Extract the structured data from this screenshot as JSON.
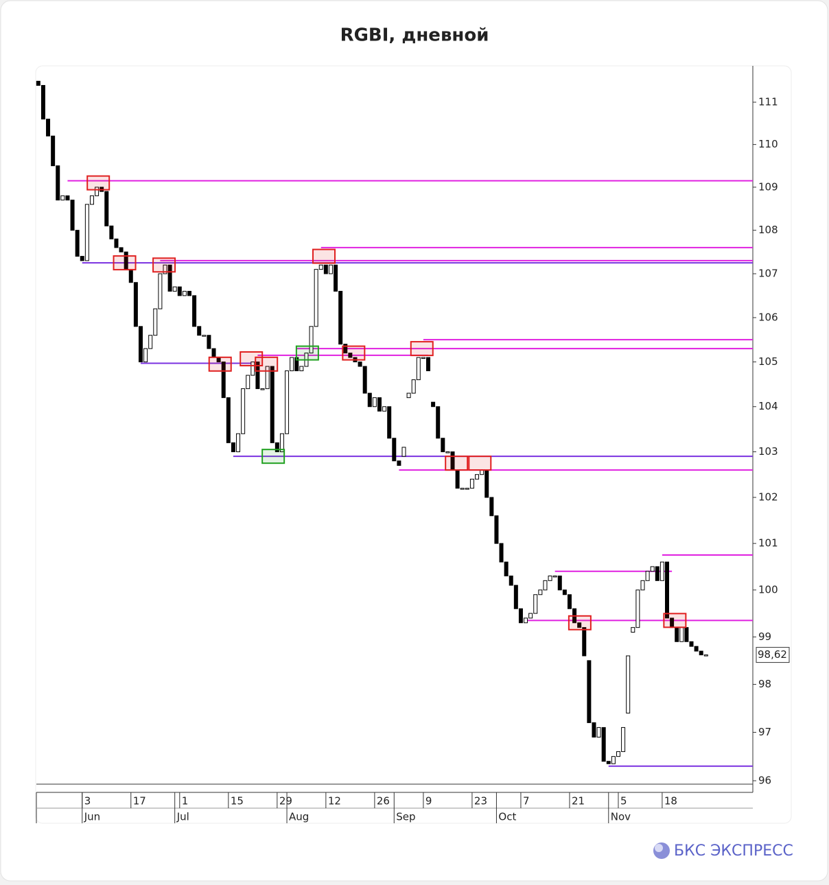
{
  "chart_data": {
    "type": "candlestick",
    "title": "RGBI, дневной",
    "brand": "БКС ЭКСПРЕСС",
    "log_scale": true,
    "ylim": [
      95.93,
      111.85
    ],
    "yticks": [
      96,
      97,
      98,
      99,
      100,
      101,
      102,
      103,
      104,
      105,
      106,
      107,
      108,
      109,
      110,
      111
    ],
    "xlim": [
      -0.4,
      146.6
    ],
    "xticks": [
      {
        "value": 9,
        "label": "3"
      },
      {
        "value": 19,
        "label": "17"
      },
      {
        "value": 29,
        "label": "1"
      },
      {
        "value": 39,
        "label": "15"
      },
      {
        "value": 49,
        "label": "29"
      },
      {
        "value": 59,
        "label": "12"
      },
      {
        "value": 69,
        "label": "26"
      },
      {
        "value": 79,
        "label": "9"
      },
      {
        "value": 89,
        "label": "23"
      },
      {
        "value": 99,
        "label": "7"
      },
      {
        "value": 109,
        "label": "21"
      },
      {
        "value": 119,
        "label": "5"
      },
      {
        "value": 128,
        "label": "18"
      }
    ],
    "month_ticks": [
      {
        "value": 9,
        "label": "Jun"
      },
      {
        "value": 28,
        "label": "Jul"
      },
      {
        "value": 51,
        "label": "Aug"
      },
      {
        "value": 73,
        "label": "Sep"
      },
      {
        "value": 94,
        "label": "Oct"
      },
      {
        "value": 117,
        "label": "Nov"
      }
    ],
    "open": [
      111.5,
      111.4,
      110.6,
      110.2,
      109.5,
      108.7,
      108.8,
      108.7,
      108.0,
      107.4,
      107.3,
      108.6,
      108.8,
      109.0,
      108.9,
      108.1,
      107.8,
      107.6,
      107.5,
      107.1,
      106.8,
      105.8,
      105.0,
      105.3,
      105.6,
      106.2,
      107.0,
      107.2,
      106.6,
      106.7,
      106.5,
      106.6,
      106.5,
      105.8,
      105.6,
      105.6,
      105.3,
      105.1,
      105.0,
      104.2,
      103.2,
      103.0,
      103.4,
      104.4,
      104.7,
      105.0,
      104.4,
      104.4,
      104.9,
      103.2,
      103.0,
      103.4,
      104.8,
      105.1,
      104.8,
      104.9,
      105.2,
      105.8,
      107.1,
      107.2,
      107.0,
      107.2,
      106.6,
      105.4,
      105.2,
      105.1,
      105.0,
      104.9,
      104.3,
      104.0,
      104.2,
      103.9,
      104.0,
      103.3,
      102.8,
      102.9,
      104.2,
      104.3,
      104.6,
      105.1,
      105.1,
      104.1,
      104.0,
      103.3,
      103.0,
      103.0,
      102.6,
      102.2,
      102.2,
      102.2,
      102.4,
      102.5,
      102.6,
      102.0,
      101.6,
      101.0,
      100.6,
      100.3,
      100.1,
      99.6,
      99.3,
      99.4,
      99.5,
      99.9,
      100.0,
      100.2,
      100.3,
      100.3,
      100.0,
      99.9,
      99.6,
      99.3,
      99.2,
      98.5,
      97.2,
      96.9,
      97.1,
      96.4,
      96.35,
      96.5,
      96.6,
      97.4,
      99.1,
      99.2,
      100.0,
      100.2,
      100.4,
      100.5,
      100.2,
      100.6,
      99.4,
      99.2,
      98.9,
      99.2,
      98.9,
      98.8,
      98.7,
      98.6
    ],
    "close": [
      111.4,
      110.6,
      110.2,
      109.5,
      108.7,
      108.8,
      108.7,
      108.0,
      107.4,
      107.3,
      108.6,
      108.8,
      109.0,
      108.9,
      108.1,
      107.8,
      107.6,
      107.5,
      107.1,
      106.8,
      105.8,
      105.0,
      105.3,
      105.6,
      106.2,
      107.0,
      107.2,
      106.6,
      106.7,
      106.5,
      106.6,
      106.5,
      105.8,
      105.6,
      105.6,
      105.3,
      105.1,
      105.0,
      104.2,
      103.2,
      103.0,
      103.4,
      104.4,
      104.7,
      105.0,
      104.4,
      104.4,
      104.9,
      103.2,
      103.0,
      103.4,
      104.8,
      105.1,
      104.8,
      104.9,
      105.2,
      105.8,
      107.1,
      107.2,
      107.0,
      107.2,
      106.6,
      105.4,
      105.2,
      105.1,
      105.0,
      104.9,
      104.3,
      104.0,
      104.2,
      103.9,
      104.0,
      103.3,
      102.8,
      102.7,
      103.1,
      104.3,
      104.6,
      105.1,
      105.1,
      104.8,
      104.0,
      103.3,
      103.0,
      103.0,
      102.6,
      102.2,
      102.2,
      102.2,
      102.4,
      102.5,
      102.6,
      102.0,
      101.6,
      101.0,
      100.6,
      100.3,
      100.1,
      99.6,
      99.3,
      99.4,
      99.5,
      99.9,
      100.0,
      100.2,
      100.3,
      100.3,
      100.0,
      99.9,
      99.6,
      99.3,
      99.2,
      98.6,
      97.2,
      96.9,
      97.1,
      96.4,
      96.35,
      96.5,
      96.6,
      97.1,
      98.6,
      99.2,
      100.0,
      100.2,
      100.4,
      100.5,
      100.2,
      100.6,
      99.4,
      99.2,
      98.9,
      99.2,
      98.9,
      98.8,
      98.7,
      98.62,
      98.62
    ],
    "levels": [
      {
        "value": 109.15,
        "start": 6,
        "color": "#e020e0"
      },
      {
        "value": 107.6,
        "start": 58,
        "color": "#e020e0"
      },
      {
        "value": 107.3,
        "start": 25,
        "color": "#e020e0"
      },
      {
        "value": 107.25,
        "start": 9,
        "color": "#7a30e0"
      },
      {
        "value": 105.5,
        "start": 79,
        "color": "#e020e0"
      },
      {
        "value": 105.3,
        "start": 53,
        "color": "#e020e0"
      },
      {
        "value": 105.15,
        "start": 45,
        "end": 80,
        "color": "#e020e0"
      },
      {
        "value": 104.97,
        "start": 21,
        "end": 44,
        "color": "#7a30e0"
      },
      {
        "value": 102.9,
        "start": 40,
        "color": "#7a30e0"
      },
      {
        "value": 102.6,
        "start": 74,
        "color": "#e020e0"
      },
      {
        "value": 100.75,
        "start": 128,
        "color": "#e020e0"
      },
      {
        "value": 100.4,
        "start": 106,
        "end": 130,
        "color": "#e020e0"
      },
      {
        "value": 99.35,
        "start": 100,
        "color": "#e020e0"
      },
      {
        "value": 96.3,
        "start": 117,
        "color": "#7a30e0"
      }
    ],
    "markers": [
      {
        "index": 12.3,
        "value": 109.1,
        "color": "#e02020"
      },
      {
        "index": 17.7,
        "value": 107.25,
        "color": "#e02020"
      },
      {
        "index": 25.8,
        "value": 107.2,
        "color": "#e02020"
      },
      {
        "index": 37.3,
        "value": 104.95,
        "color": "#e02020"
      },
      {
        "index": 43.7,
        "value": 105.07,
        "color": "#e02020"
      },
      {
        "index": 46.8,
        "value": 104.95,
        "color": "#e02020"
      },
      {
        "index": 48.2,
        "value": 102.9,
        "color": "#20a020"
      },
      {
        "index": 55.2,
        "value": 105.2,
        "color": "#20a020"
      },
      {
        "index": 58.6,
        "value": 107.4,
        "color": "#e02020"
      },
      {
        "index": 64.7,
        "value": 105.2,
        "color": "#e02020"
      },
      {
        "index": 78.7,
        "value": 105.3,
        "color": "#e02020"
      },
      {
        "index": 85.8,
        "value": 102.75,
        "color": "#e02020"
      },
      {
        "index": 90.6,
        "value": 102.75,
        "color": "#e02020"
      },
      {
        "index": 111.1,
        "value": 99.3,
        "color": "#e02020"
      },
      {
        "index": 130.6,
        "value": 99.35,
        "color": "#e02020"
      }
    ],
    "last_price": {
      "value": 98.62,
      "label": "98,62"
    }
  }
}
